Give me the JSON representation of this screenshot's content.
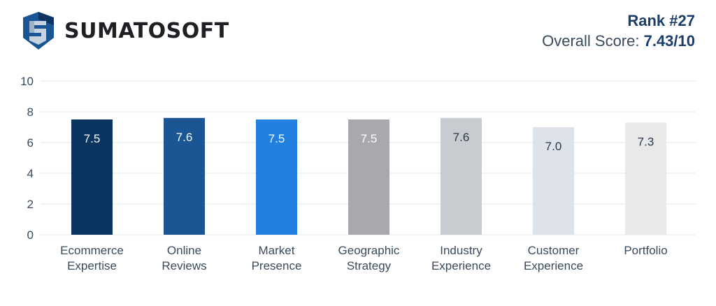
{
  "brand": {
    "name": "SUMATOSOFT",
    "logo_icon": "shield-s-icon",
    "colors": {
      "dark": "#0d3461",
      "mid": "#1b5694",
      "light": "#c6d2df"
    }
  },
  "score": {
    "rank_label": "Rank #27",
    "overall_prefix": "Overall Score: ",
    "overall_value": "7.43/10"
  },
  "chart_data": {
    "type": "bar",
    "title": "",
    "xlabel": "",
    "ylabel": "",
    "ylim": [
      0,
      10
    ],
    "yticks": [
      0,
      2,
      4,
      6,
      8,
      10
    ],
    "grid": true,
    "legend": "none",
    "categories": [
      [
        "Ecommerce",
        "Expertise"
      ],
      [
        "Online",
        "Reviews"
      ],
      [
        "Market",
        "Presence"
      ],
      [
        "Geographic",
        "Strategy"
      ],
      [
        "Industry",
        "Experience"
      ],
      [
        "Customer",
        "Experience"
      ],
      [
        "Portfolio"
      ]
    ],
    "values": [
      7.5,
      7.6,
      7.5,
      7.5,
      7.6,
      7.0,
      7.3
    ],
    "data_labels": [
      "7.5",
      "7.6",
      "7.5",
      "7.5",
      "7.6",
      "7.0",
      "7.3"
    ],
    "bar_colors": [
      "#0b3561",
      "#1b5593",
      "#2180e0",
      "#a8a9ad",
      "#c8cbd0",
      "#dee3ea",
      "#e9e9e9"
    ],
    "label_colors": [
      "#ffffff",
      "#ffffff",
      "#ffffff",
      "#ffffff",
      "#283a4d",
      "#283a4d",
      "#283a4d"
    ]
  }
}
